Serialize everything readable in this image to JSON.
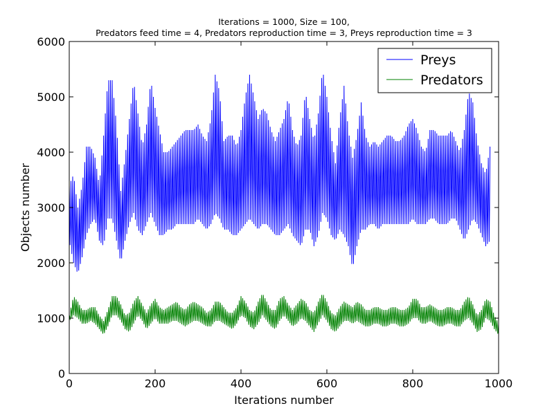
{
  "chart_data": {
    "type": "line",
    "title_lines": [
      "Iterations = 1000, Size = 100,",
      "Predators feed time = 4, Predators reproduction time = 3,  Preys reproduction time = 3"
    ],
    "xlabel": "Iterations number",
    "ylabel": "Objects number",
    "xlim": [
      0,
      1000
    ],
    "ylim": [
      0,
      6000
    ],
    "xticks": [
      0,
      200,
      400,
      600,
      800,
      1000
    ],
    "yticks": [
      0,
      1000,
      2000,
      3000,
      4000,
      5000,
      6000
    ],
    "grid": false,
    "legend_position": "top-right",
    "series": [
      {
        "name": "Preys",
        "color": "#0000ff",
        "envelope_x": [
          0,
          10,
          20,
          30,
          40,
          50,
          60,
          70,
          80,
          90,
          100,
          110,
          120,
          130,
          140,
          150,
          160,
          170,
          180,
          190,
          200,
          210,
          220,
          230,
          240,
          250,
          260,
          270,
          280,
          290,
          300,
          310,
          320,
          330,
          340,
          350,
          360,
          370,
          380,
          390,
          400,
          410,
          420,
          430,
          440,
          450,
          460,
          470,
          480,
          490,
          500,
          510,
          520,
          530,
          540,
          550,
          560,
          570,
          580,
          590,
          600,
          610,
          620,
          630,
          640,
          650,
          660,
          670,
          680,
          690,
          700,
          710,
          720,
          730,
          740,
          750,
          760,
          770,
          780,
          790,
          800,
          810,
          820,
          830,
          840,
          850,
          860,
          870,
          880,
          890,
          900,
          910,
          920,
          930,
          940,
          950,
          960,
          970,
          980,
          990,
          1000
        ],
        "envelope_high": [
          3400,
          3600,
          3000,
          3400,
          4100,
          4100,
          3900,
          3400,
          4300,
          5300,
          5300,
          4500,
          3300,
          3900,
          4600,
          5300,
          4700,
          4100,
          4500,
          5300,
          4800,
          4400,
          4000,
          4000,
          4100,
          4200,
          4300,
          4400,
          4400,
          4400,
          4500,
          4300,
          4200,
          4600,
          5400,
          5100,
          4200,
          4300,
          4300,
          4100,
          4400,
          5000,
          5400,
          5000,
          4600,
          4800,
          4700,
          4400,
          4200,
          4400,
          4600,
          5000,
          4400,
          4100,
          4300,
          5100,
          4600,
          4200,
          4700,
          5500,
          5000,
          4300,
          3800,
          4600,
          5200,
          4400,
          3900,
          4300,
          4900,
          4300,
          4100,
          4200,
          4100,
          4200,
          4300,
          4300,
          4200,
          4200,
          4300,
          4500,
          4600,
          4400,
          4100,
          4000,
          4400,
          4400,
          4300,
          4300,
          4300,
          4400,
          4200,
          4000,
          4400,
          5100,
          4900,
          4200,
          3800,
          3600,
          4100
        ],
        "envelope_low": [
          2400,
          2000,
          1800,
          2100,
          2500,
          2700,
          2800,
          2400,
          2300,
          2800,
          2800,
          2400,
          2000,
          2400,
          2700,
          2900,
          2600,
          2500,
          2700,
          2900,
          2700,
          2500,
          2500,
          2600,
          2600,
          2700,
          2700,
          2700,
          2700,
          2700,
          2800,
          2700,
          2600,
          2700,
          2900,
          2800,
          2600,
          2600,
          2500,
          2500,
          2600,
          2700,
          2800,
          2700,
          2600,
          2700,
          2700,
          2600,
          2500,
          2500,
          2600,
          2700,
          2500,
          2400,
          2300,
          2600,
          2600,
          2300,
          2500,
          2900,
          2800,
          2500,
          2400,
          2600,
          2500,
          2300,
          1900,
          2300,
          2600,
          2600,
          2700,
          2700,
          2600,
          2700,
          2700,
          2700,
          2700,
          2700,
          2700,
          2700,
          2800,
          2700,
          2700,
          2700,
          2800,
          2800,
          2700,
          2700,
          2700,
          2800,
          2800,
          2600,
          2400,
          2600,
          2800,
          2700,
          2500,
          2300,
          2400,
          2300,
          2500
        ]
      },
      {
        "name": "Predators",
        "color": "#008000",
        "envelope_x": [
          0,
          10,
          20,
          30,
          40,
          50,
          60,
          70,
          80,
          90,
          100,
          110,
          120,
          130,
          140,
          150,
          160,
          170,
          180,
          190,
          200,
          210,
          220,
          230,
          240,
          250,
          260,
          270,
          280,
          290,
          300,
          310,
          320,
          330,
          340,
          350,
          360,
          370,
          380,
          390,
          400,
          410,
          420,
          430,
          440,
          450,
          460,
          470,
          480,
          490,
          500,
          510,
          520,
          530,
          540,
          550,
          560,
          570,
          580,
          590,
          600,
          610,
          620,
          630,
          640,
          650,
          660,
          670,
          680,
          690,
          700,
          710,
          720,
          730,
          740,
          750,
          760,
          770,
          780,
          790,
          800,
          810,
          820,
          830,
          840,
          850,
          860,
          870,
          880,
          890,
          900,
          910,
          920,
          930,
          940,
          950,
          960,
          970,
          980,
          990,
          1000
        ],
        "envelope_high": [
          1050,
          1400,
          1300,
          1150,
          1150,
          1200,
          1200,
          1050,
          950,
          1150,
          1400,
          1400,
          1250,
          1050,
          1100,
          1300,
          1400,
          1250,
          1100,
          1250,
          1350,
          1200,
          1150,
          1200,
          1250,
          1300,
          1200,
          1150,
          1250,
          1300,
          1250,
          1200,
          1100,
          1150,
          1300,
          1300,
          1200,
          1100,
          1100,
          1200,
          1400,
          1300,
          1150,
          1100,
          1300,
          1450,
          1300,
          1150,
          1150,
          1350,
          1400,
          1250,
          1150,
          1250,
          1350,
          1300,
          1150,
          1100,
          1300,
          1450,
          1300,
          1100,
          1050,
          1200,
          1300,
          1250,
          1200,
          1300,
          1250,
          1150,
          1150,
          1200,
          1200,
          1150,
          1150,
          1200,
          1200,
          1150,
          1150,
          1200,
          1350,
          1350,
          1200,
          1200,
          1250,
          1200,
          1150,
          1150,
          1200,
          1200,
          1150,
          1150,
          1300,
          1400,
          1250,
          1050,
          1150,
          1350,
          1300,
          1050,
          900
        ],
        "envelope_low": [
          950,
          1050,
          1000,
          900,
          900,
          950,
          900,
          800,
          700,
          850,
          1050,
          1050,
          950,
          800,
          750,
          900,
          1050,
          950,
          800,
          900,
          1000,
          900,
          900,
          900,
          950,
          950,
          900,
          850,
          900,
          950,
          950,
          900,
          850,
          850,
          950,
          950,
          900,
          850,
          800,
          900,
          1050,
          1000,
          850,
          800,
          900,
          1050,
          950,
          850,
          800,
          950,
          1050,
          950,
          850,
          900,
          1000,
          950,
          850,
          750,
          900,
          1050,
          950,
          800,
          750,
          850,
          950,
          950,
          900,
          950,
          900,
          850,
          850,
          900,
          900,
          850,
          850,
          900,
          900,
          850,
          850,
          900,
          1000,
          1000,
          900,
          900,
          950,
          900,
          850,
          850,
          900,
          900,
          850,
          850,
          950,
          1000,
          900,
          750,
          800,
          1000,
          950,
          800,
          700
        ]
      }
    ]
  }
}
